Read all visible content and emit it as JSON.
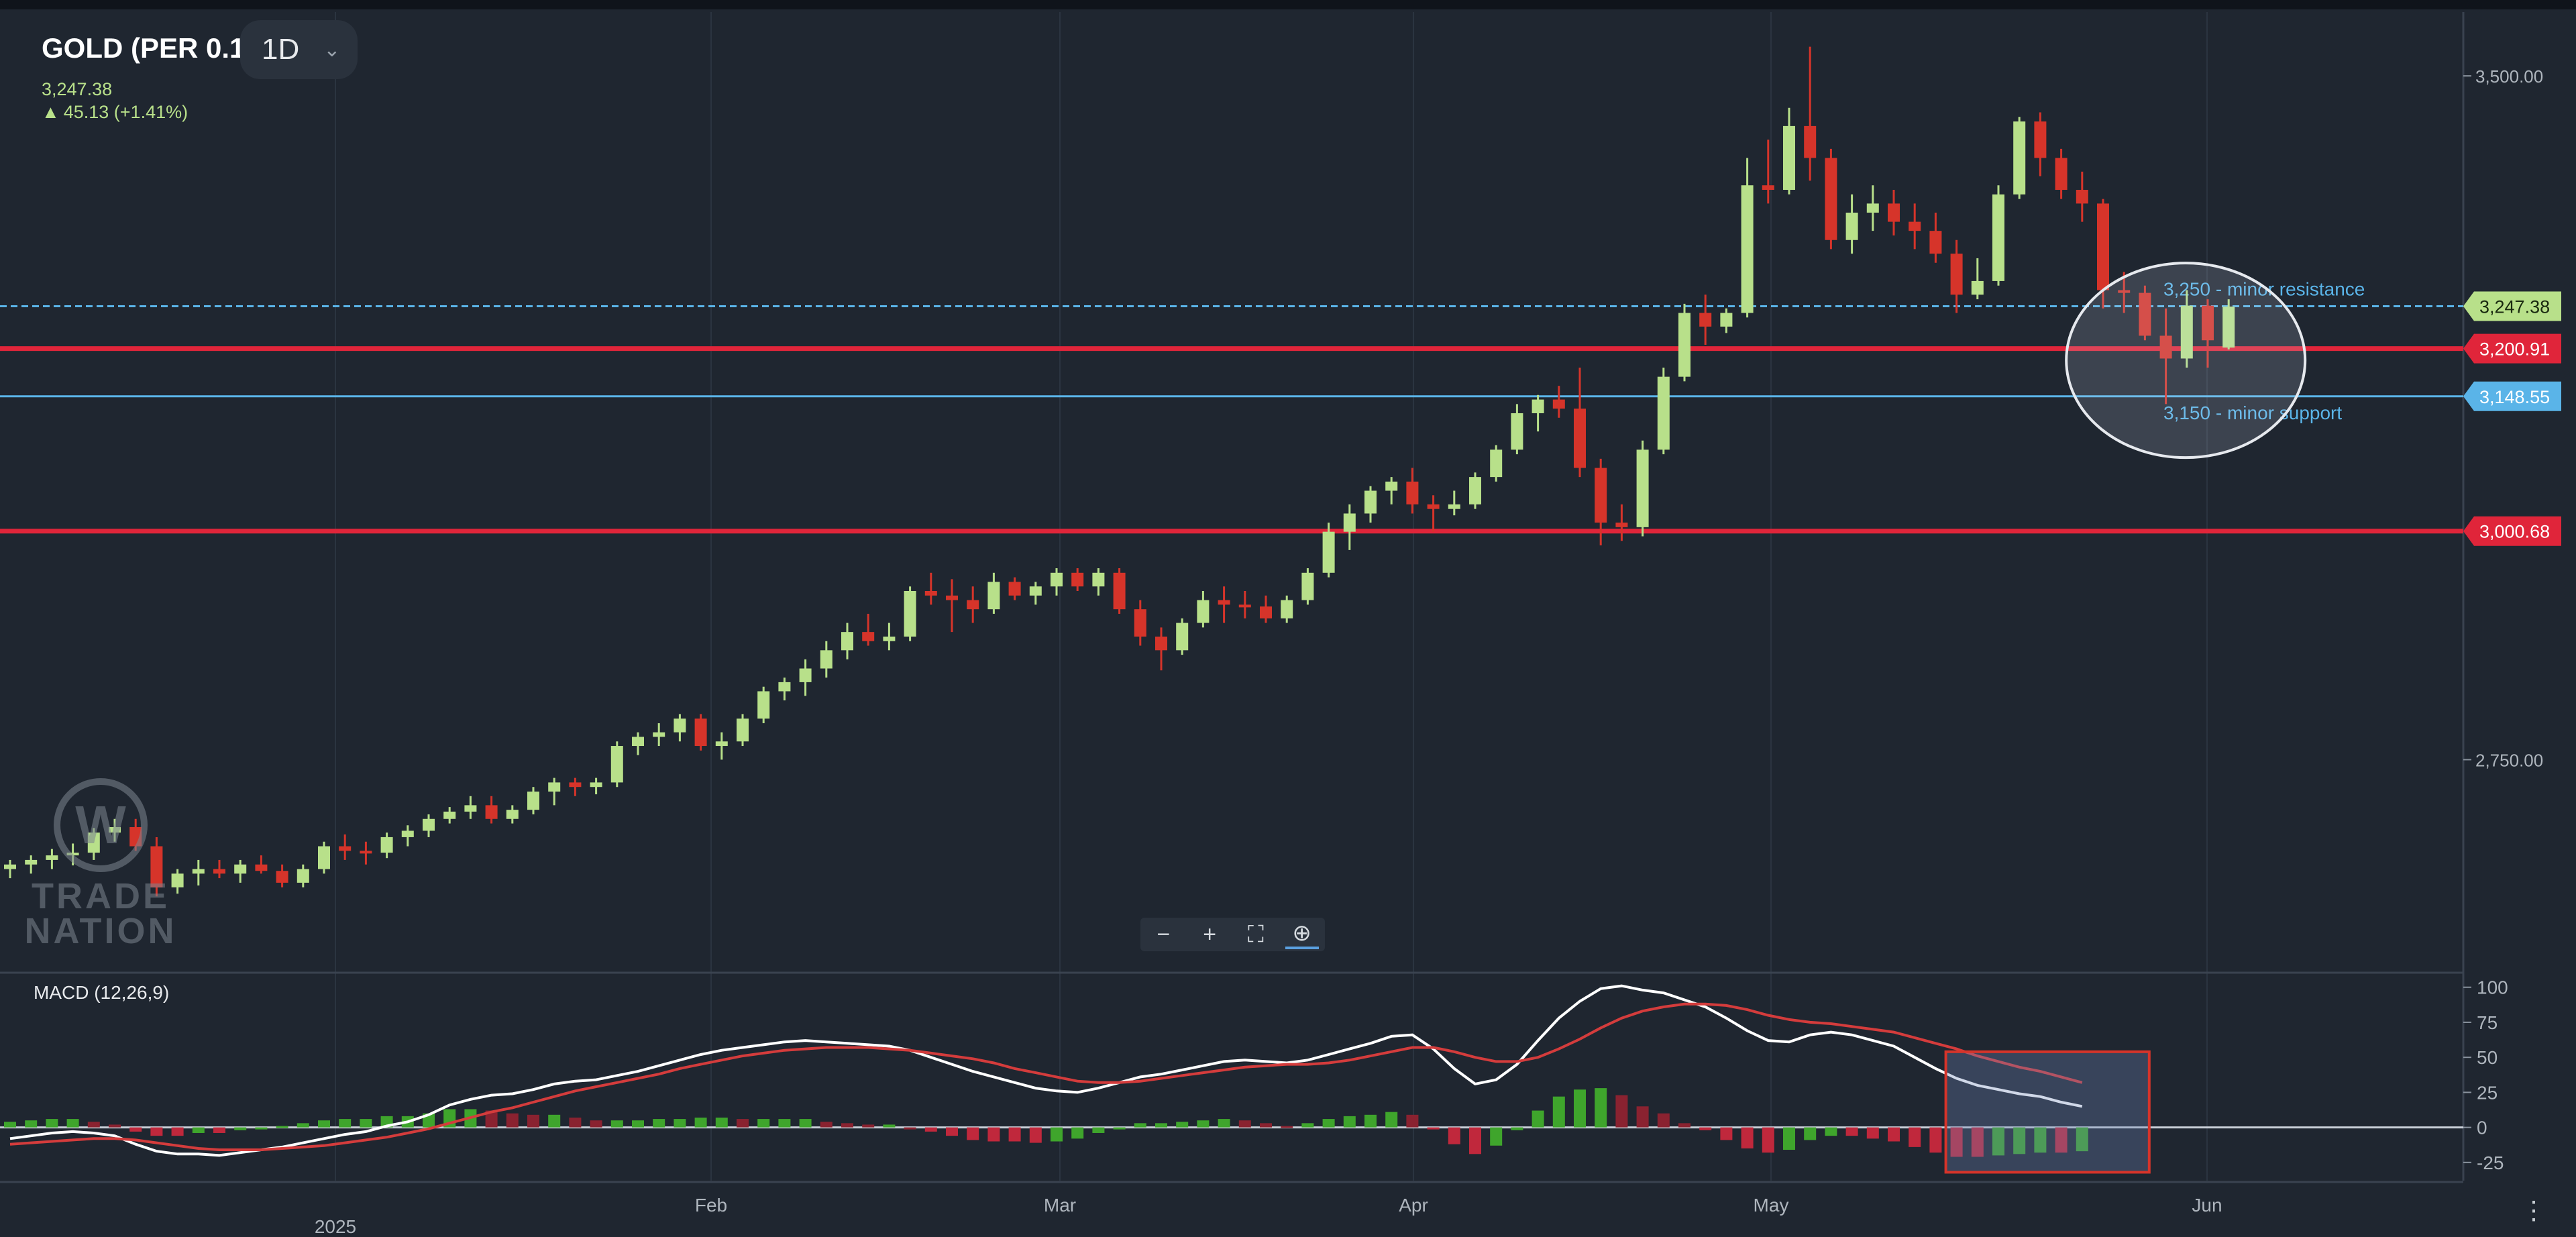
{
  "header": {
    "symbol": "GOLD (PER 0.1)",
    "timeframe": "1D",
    "last_price": "3,247.38",
    "change": "45.13 (+1.41%)"
  },
  "macd_panel": {
    "title": "MACD (12,26,9)"
  },
  "zoom_toolbar": {
    "minus": "−",
    "plus": "+",
    "fullscreen": "⛶",
    "zoom": "⊕"
  },
  "watermark": {
    "line1": "TRADE",
    "line2": "NATION"
  },
  "colors": {
    "background": "#1f2630",
    "bullish_candle": "#b8e08a",
    "bearish_candle": "#d6342a",
    "key_level_red": "#e0253a",
    "minor_level_blue": "#5ab4e8",
    "macd_line": "#ffffff",
    "signal_line": "#d43c3c"
  },
  "chart_data": [
    {
      "type": "candlestick",
      "title": "GOLD (PER 0.1)",
      "timeframe": "1D",
      "y_axis": {
        "ticks": [
          2750,
          3500
        ],
        "tick_labels": [
          "2,750.00",
          "3,500.00"
        ],
        "range": [
          2520,
          3570
        ]
      },
      "x_axis": {
        "labels": [
          "2025",
          "Feb",
          "Mar",
          "Apr",
          "May",
          "Jun"
        ]
      },
      "ohlc": [
        [
          2630,
          2640,
          2620,
          2635
        ],
        [
          2635,
          2645,
          2625,
          2640
        ],
        [
          2640,
          2652,
          2630,
          2645
        ],
        [
          2645,
          2658,
          2634,
          2648
        ],
        [
          2648,
          2675,
          2640,
          2670
        ],
        [
          2670,
          2685,
          2660,
          2676
        ],
        [
          2676,
          2685,
          2650,
          2655
        ],
        [
          2655,
          2665,
          2600,
          2610
        ],
        [
          2610,
          2630,
          2603,
          2625
        ],
        [
          2625,
          2640,
          2612,
          2630
        ],
        [
          2630,
          2640,
          2620,
          2625
        ],
        [
          2625,
          2640,
          2615,
          2635
        ],
        [
          2635,
          2645,
          2625,
          2628
        ],
        [
          2628,
          2635,
          2610,
          2615
        ],
        [
          2615,
          2635,
          2610,
          2630
        ],
        [
          2630,
          2660,
          2625,
          2655
        ],
        [
          2655,
          2668,
          2640,
          2650
        ],
        [
          2650,
          2660,
          2635,
          2648
        ],
        [
          2648,
          2670,
          2642,
          2665
        ],
        [
          2665,
          2678,
          2655,
          2672
        ],
        [
          2672,
          2690,
          2665,
          2685
        ],
        [
          2685,
          2698,
          2680,
          2693
        ],
        [
          2693,
          2710,
          2685,
          2700
        ],
        [
          2700,
          2710,
          2680,
          2685
        ],
        [
          2685,
          2700,
          2680,
          2695
        ],
        [
          2695,
          2720,
          2690,
          2715
        ],
        [
          2715,
          2730,
          2700,
          2725
        ],
        [
          2725,
          2730,
          2710,
          2720
        ],
        [
          2720,
          2730,
          2712,
          2725
        ],
        [
          2725,
          2770,
          2720,
          2765
        ],
        [
          2765,
          2780,
          2755,
          2775
        ],
        [
          2775,
          2790,
          2765,
          2780
        ],
        [
          2780,
          2800,
          2770,
          2795
        ],
        [
          2795,
          2800,
          2760,
          2765
        ],
        [
          2765,
          2780,
          2750,
          2770
        ],
        [
          2770,
          2800,
          2765,
          2795
        ],
        [
          2795,
          2830,
          2790,
          2825
        ],
        [
          2825,
          2840,
          2815,
          2835
        ],
        [
          2835,
          2860,
          2820,
          2850
        ],
        [
          2850,
          2880,
          2840,
          2870
        ],
        [
          2870,
          2900,
          2860,
          2890
        ],
        [
          2890,
          2910,
          2875,
          2880
        ],
        [
          2880,
          2900,
          2870,
          2885
        ],
        [
          2885,
          2940,
          2880,
          2935
        ],
        [
          2935,
          2955,
          2920,
          2930
        ],
        [
          2930,
          2948,
          2890,
          2925
        ],
        [
          2925,
          2940,
          2900,
          2915
        ],
        [
          2915,
          2955,
          2910,
          2945
        ],
        [
          2945,
          2950,
          2925,
          2930
        ],
        [
          2930,
          2945,
          2920,
          2940
        ],
        [
          2940,
          2960,
          2930,
          2955
        ],
        [
          2955,
          2960,
          2935,
          2940
        ],
        [
          2940,
          2960,
          2930,
          2955
        ],
        [
          2955,
          2960,
          2910,
          2915
        ],
        [
          2915,
          2925,
          2875,
          2885
        ],
        [
          2885,
          2895,
          2848,
          2870
        ],
        [
          2870,
          2905,
          2865,
          2900
        ],
        [
          2900,
          2935,
          2895,
          2925
        ],
        [
          2925,
          2940,
          2900,
          2920
        ],
        [
          2920,
          2935,
          2905,
          2918
        ],
        [
          2918,
          2930,
          2900,
          2905
        ],
        [
          2905,
          2930,
          2900,
          2925
        ],
        [
          2925,
          2960,
          2920,
          2955
        ],
        [
          2955,
          3010,
          2950,
          3000
        ],
        [
          3000,
          3030,
          2980,
          3020
        ],
        [
          3020,
          3050,
          3010,
          3045
        ],
        [
          3045,
          3060,
          3030,
          3055
        ],
        [
          3055,
          3070,
          3020,
          3030
        ],
        [
          3030,
          3040,
          3000,
          3025
        ],
        [
          3025,
          3045,
          3018,
          3030
        ],
        [
          3030,
          3065,
          3025,
          3060
        ],
        [
          3060,
          3095,
          3055,
          3090
        ],
        [
          3090,
          3140,
          3085,
          3130
        ],
        [
          3130,
          3150,
          3110,
          3145
        ],
        [
          3145,
          3160,
          3125,
          3135
        ],
        [
          3135,
          3180,
          3060,
          3070
        ],
        [
          3070,
          3080,
          2985,
          3010
        ],
        [
          3010,
          3030,
          2990,
          3005
        ],
        [
          3005,
          3100,
          2995,
          3090
        ],
        [
          3090,
          3180,
          3085,
          3170
        ],
        [
          3170,
          3250,
          3165,
          3240
        ],
        [
          3240,
          3260,
          3205,
          3225
        ],
        [
          3225,
          3245,
          3218,
          3240
        ],
        [
          3240,
          3410,
          3235,
          3380
        ],
        [
          3380,
          3430,
          3360,
          3375
        ],
        [
          3375,
          3465,
          3370,
          3445
        ],
        [
          3445,
          3532,
          3385,
          3410
        ],
        [
          3410,
          3420,
          3310,
          3320
        ],
        [
          3320,
          3370,
          3305,
          3350
        ],
        [
          3350,
          3380,
          3330,
          3360
        ],
        [
          3360,
          3375,
          3325,
          3340
        ],
        [
          3340,
          3360,
          3310,
          3330
        ],
        [
          3330,
          3350,
          3295,
          3305
        ],
        [
          3305,
          3320,
          3240,
          3260
        ],
        [
          3260,
          3300,
          3255,
          3275
        ],
        [
          3275,
          3380,
          3270,
          3370
        ],
        [
          3370,
          3455,
          3365,
          3450
        ],
        [
          3450,
          3460,
          3390,
          3410
        ],
        [
          3410,
          3420,
          3365,
          3375
        ],
        [
          3375,
          3395,
          3340,
          3360
        ],
        [
          3360,
          3365,
          3245,
          3265
        ],
        [
          3265,
          3285,
          3240,
          3262
        ],
        [
          3262,
          3270,
          3210,
          3215
        ],
        [
          3215,
          3245,
          3140,
          3190
        ],
        [
          3190,
          3265,
          3180,
          3248
        ],
        [
          3248,
          3255,
          3180,
          3210
        ],
        [
          3202,
          3255,
          3200,
          3247
        ]
      ],
      "horizontal_levels": [
        {
          "value": 3247.38,
          "label": "3,247.38",
          "style": "dashed",
          "color": "#5ab4e8",
          "note": "3,250 - minor resistance"
        },
        {
          "value": 3200.91,
          "label": "3,200.91",
          "style": "solid",
          "color": "#e0253a"
        },
        {
          "value": 3148.55,
          "label": "3,148.55",
          "style": "solid",
          "color": "#5ab4e8",
          "note": "3,150 - minor support"
        },
        {
          "value": 3000.68,
          "label": "3,000.68",
          "style": "solid",
          "color": "#e0253a"
        }
      ]
    },
    {
      "type": "line",
      "title": "MACD (12,26,9)",
      "y_axis": {
        "ticks": [
          100,
          75,
          50,
          25,
          0,
          -25
        ],
        "range": [
          -38,
          108
        ]
      },
      "series": [
        {
          "name": "MACD",
          "values": [
            -8,
            -6,
            -4,
            -3,
            -4,
            -6,
            -12,
            -17,
            -19,
            -19,
            -20,
            -18,
            -16,
            -14,
            -11,
            -8,
            -5,
            -3,
            1,
            4,
            9,
            16,
            20,
            23,
            24,
            27,
            31,
            33,
            34,
            37,
            40,
            44,
            48,
            52,
            55,
            57,
            59,
            61,
            62,
            61,
            60,
            59,
            58,
            55,
            50,
            45,
            40,
            36,
            32,
            28,
            26,
            25,
            28,
            32,
            36,
            38,
            41,
            44,
            47,
            48,
            47,
            46,
            48,
            52,
            56,
            60,
            65,
            66,
            56,
            42,
            31,
            34,
            45,
            62,
            78,
            90,
            99,
            101,
            98,
            96,
            91,
            86,
            78,
            69,
            62,
            61,
            66,
            68,
            66,
            62,
            58,
            50,
            42,
            35,
            30,
            27,
            24,
            22,
            18,
            15
          ]
        },
        {
          "name": "Signal",
          "values": [
            -12,
            -11,
            -10,
            -9,
            -8,
            -8,
            -9,
            -11,
            -13,
            -15,
            -16,
            -16,
            -16,
            -15,
            -14,
            -13,
            -11,
            -9,
            -7,
            -4,
            -1,
            3,
            7,
            11,
            14,
            18,
            22,
            26,
            29,
            32,
            35,
            38,
            42,
            45,
            48,
            51,
            53,
            55,
            56,
            57,
            57,
            57,
            56,
            55,
            53,
            51,
            49,
            46,
            42,
            39,
            36,
            33,
            32,
            32,
            33,
            35,
            37,
            39,
            41,
            43,
            44,
            45,
            45,
            46,
            48,
            51,
            54,
            57,
            57,
            54,
            50,
            47,
            47,
            50,
            56,
            63,
            71,
            78,
            83,
            86,
            88,
            88,
            87,
            84,
            80,
            77,
            75,
            74,
            72,
            70,
            68,
            64,
            60,
            56,
            51,
            47,
            43,
            40,
            36,
            32
          ]
        }
      ],
      "histogram_values": [
        4,
        5,
        6,
        6,
        4,
        2,
        -3,
        -6,
        -6,
        -4,
        -4,
        -2,
        0,
        1,
        3,
        5,
        6,
        6,
        8,
        8,
        10,
        13,
        13,
        12,
        10,
        9,
        9,
        7,
        5,
        5,
        5,
        6,
        6,
        7,
        7,
        6,
        6,
        6,
        6,
        4,
        3,
        2,
        2,
        0,
        -3,
        -6,
        -9,
        -10,
        -10,
        -11,
        -10,
        -8,
        -4,
        0,
        3,
        3,
        4,
        5,
        6,
        5,
        3,
        1,
        3,
        6,
        8,
        9,
        11,
        9,
        -1,
        -12,
        -19,
        -13,
        -2,
        12,
        22,
        27,
        28,
        23,
        15,
        10,
        3,
        -2,
        -9,
        -15,
        -18,
        -16,
        -9,
        -6,
        -6,
        -8,
        -10,
        -14,
        -18,
        -21,
        -21,
        -20,
        -19,
        -18,
        -18,
        -17
      ]
    }
  ],
  "x_axis_labels": [
    "2025",
    "Feb",
    "Mar",
    "Apr",
    "May",
    "Jun"
  ],
  "annotations": {
    "minor_resistance": "3,250 - minor resistance",
    "minor_support": "3,150 - minor support"
  },
  "price_axis_labels": [
    "3,500.00",
    "2,750.00"
  ],
  "macd_axis_labels": [
    "100",
    "75",
    "50",
    "25",
    "0",
    "-25"
  ]
}
